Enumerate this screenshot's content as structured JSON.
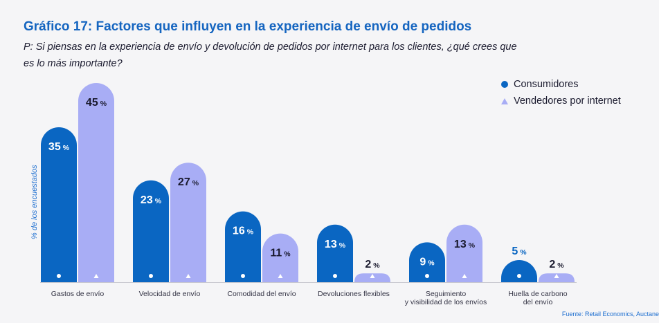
{
  "title": "Gráfico 17: Factores que influyen en la experiencia de envío de pedidos",
  "question": "P: Si piensas en la experiencia de envío y devolución de pedidos por internet para los clientes, ¿qué crees que es lo más importante?",
  "source": "Fuente: Retail Economics, Auctane",
  "colors": {
    "consumers": "#0a66c2",
    "sellers": "#a8adf5"
  },
  "chart_data": {
    "type": "bar",
    "title": "Gráfico 17: Factores que influyen en la experiencia de envío de pedidos",
    "ylabel": "% de los encuestados",
    "xlabel": "",
    "ylim": [
      0,
      45
    ],
    "grid": false,
    "legend_position": "top-right",
    "categories": [
      [
        "Gastos de envío"
      ],
      [
        "Velocidad de envío"
      ],
      [
        "Comodidad del envío"
      ],
      [
        "Devoluciones flexibles"
      ],
      [
        "Seguimiento",
        "y visibilidad de los envíos"
      ],
      [
        "Huella de carbono",
        "del envío"
      ]
    ],
    "series": [
      {
        "name": "Consumidores",
        "values": [
          35,
          23,
          16,
          13,
          9,
          5
        ],
        "labels": [
          "35",
          "23",
          "16",
          "13",
          "9",
          "5"
        ]
      },
      {
        "name": "Vendedores por internet",
        "values": [
          45,
          27,
          11,
          2,
          13,
          2
        ],
        "labels": [
          "45",
          "27",
          "11",
          "2",
          "13",
          "2"
        ]
      }
    ],
    "unit": "%"
  }
}
